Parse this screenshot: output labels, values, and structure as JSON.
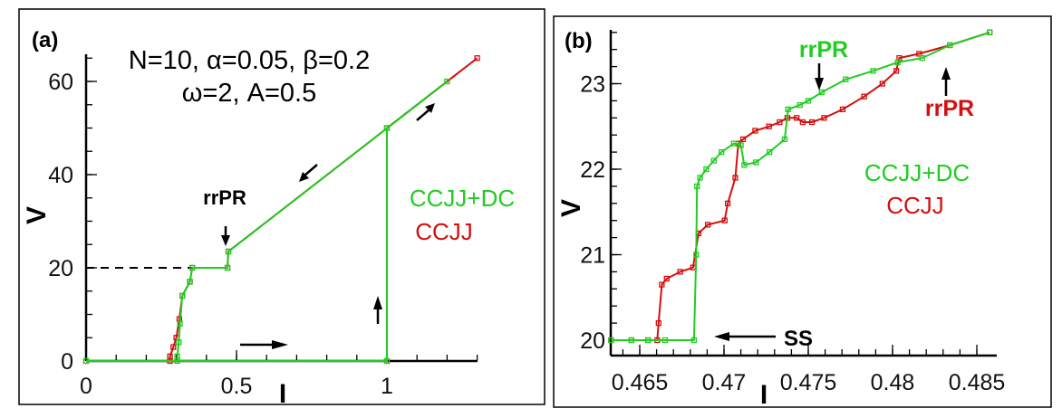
{
  "colors": {
    "green": "#22cc22",
    "red": "#d40f0f",
    "black": "#000000"
  },
  "chart_data": [
    {
      "type": "line",
      "panel_label": "(a)",
      "xlabel": "I",
      "ylabel": "V",
      "xlim": [
        0,
        1.3
      ],
      "ylim": [
        0,
        65
      ],
      "xticks": [
        "0",
        "0.5",
        "1"
      ],
      "yticks": [
        "0",
        "20",
        "40",
        "60"
      ],
      "xtick_values": [
        0,
        0.5,
        1
      ],
      "ytick_values": [
        0,
        20,
        40,
        60
      ],
      "params_line1": "N=10, α=0.05, β=0.2",
      "params_line2": "ω=2, A=0.5",
      "annotation": "rrPR",
      "legend": [
        "CCJJ+DC",
        "CCJJ"
      ],
      "legend_placement": "right",
      "reference_line": {
        "V": 20,
        "I_range": [
          0,
          0.353
        ],
        "style": "dashed"
      },
      "series": [
        {
          "name": "CCJJ",
          "color": "#d40f0f",
          "x": [
            0,
            1,
            1,
            1.3,
            0.473,
            0.47,
            0.353,
            0.345,
            0.32,
            0.31,
            0.3,
            0.29,
            0.279,
            0.279
          ],
          "y": [
            0,
            0,
            50,
            65,
            23.5,
            20,
            20,
            17,
            14,
            9,
            5,
            3,
            1,
            0
          ]
        },
        {
          "name": "CCJJ+DC",
          "color": "#22cc22",
          "x": [
            0,
            1,
            1,
            1.2,
            0.473,
            0.47,
            0.353,
            0.345,
            0.32,
            0.312,
            0.308,
            0.303,
            0.303
          ],
          "y": [
            0,
            0,
            50,
            60,
            23.5,
            20,
            20,
            17,
            14,
            8,
            4,
            1,
            0
          ]
        }
      ]
    },
    {
      "type": "line",
      "panel_label": "(b)",
      "xlabel": "I",
      "ylabel": "V",
      "xlim": [
        0.4633,
        0.4857
      ],
      "ylim": [
        19.8,
        23.65
      ],
      "xticks": [
        "0.465",
        "0.47",
        "0.475",
        "0.48",
        "0.485"
      ],
      "yticks": [
        "20",
        "21",
        "22",
        "23"
      ],
      "xtick_values": [
        0.465,
        0.47,
        0.475,
        0.48,
        0.485
      ],
      "ytick_values": [
        20,
        21,
        22,
        23
      ],
      "annotations": {
        "rrPR_green": "rrPR",
        "rrPR_red": "rrPR",
        "ss": "SS"
      },
      "legend": [
        "CCJJ+DC",
        "CCJJ"
      ],
      "legend_placement": "center-right",
      "series": [
        {
          "name": "CCJJ",
          "color": "#d40f0f",
          "x": [
            0.4633,
            0.4645,
            0.4655,
            0.46604,
            0.46612,
            0.46631,
            0.4666,
            0.4674,
            0.46816,
            0.46849,
            0.46904,
            0.47004,
            0.47022,
            0.47067,
            0.47085,
            0.47113,
            0.47185,
            0.47267,
            0.4733,
            0.47376,
            0.47431,
            0.47467,
            0.47522,
            0.47594,
            0.47704,
            0.47831,
            0.4794,
            0.48022,
            0.4804,
            0.48158,
            0.4834,
            0.48576
          ],
          "y": [
            20,
            20,
            20,
            20,
            20.2,
            20.65,
            20.72,
            20.8,
            20.85,
            21.25,
            21.35,
            21.4,
            21.6,
            21.9,
            22.3,
            22.35,
            22.45,
            22.5,
            22.55,
            22.6,
            22.6,
            22.55,
            22.55,
            22.6,
            22.7,
            22.85,
            23.0,
            23.15,
            23.3,
            23.35,
            23.45,
            23.6
          ]
        },
        {
          "name": "CCJJ+DC",
          "color": "#22cc22",
          "x": [
            0.4633,
            0.4645,
            0.4655,
            0.4665,
            0.46822,
            0.46835,
            0.4684,
            0.46858,
            0.46895,
            0.4694,
            0.46985,
            0.47058,
            0.471,
            0.4712,
            0.4719,
            0.4727,
            0.4736,
            0.4738,
            0.4745,
            0.475,
            0.4758,
            0.47722,
            0.47885,
            0.48031,
            0.48176,
            0.4834,
            0.48576
          ],
          "y": [
            20,
            20,
            20,
            20,
            20,
            21,
            21.8,
            21.9,
            22.0,
            22.1,
            22.2,
            22.3,
            22.28,
            22.05,
            22.08,
            22.2,
            22.35,
            22.7,
            22.75,
            22.8,
            22.9,
            23.05,
            23.15,
            23.25,
            23.3,
            23.45,
            23.6
          ]
        }
      ]
    }
  ]
}
